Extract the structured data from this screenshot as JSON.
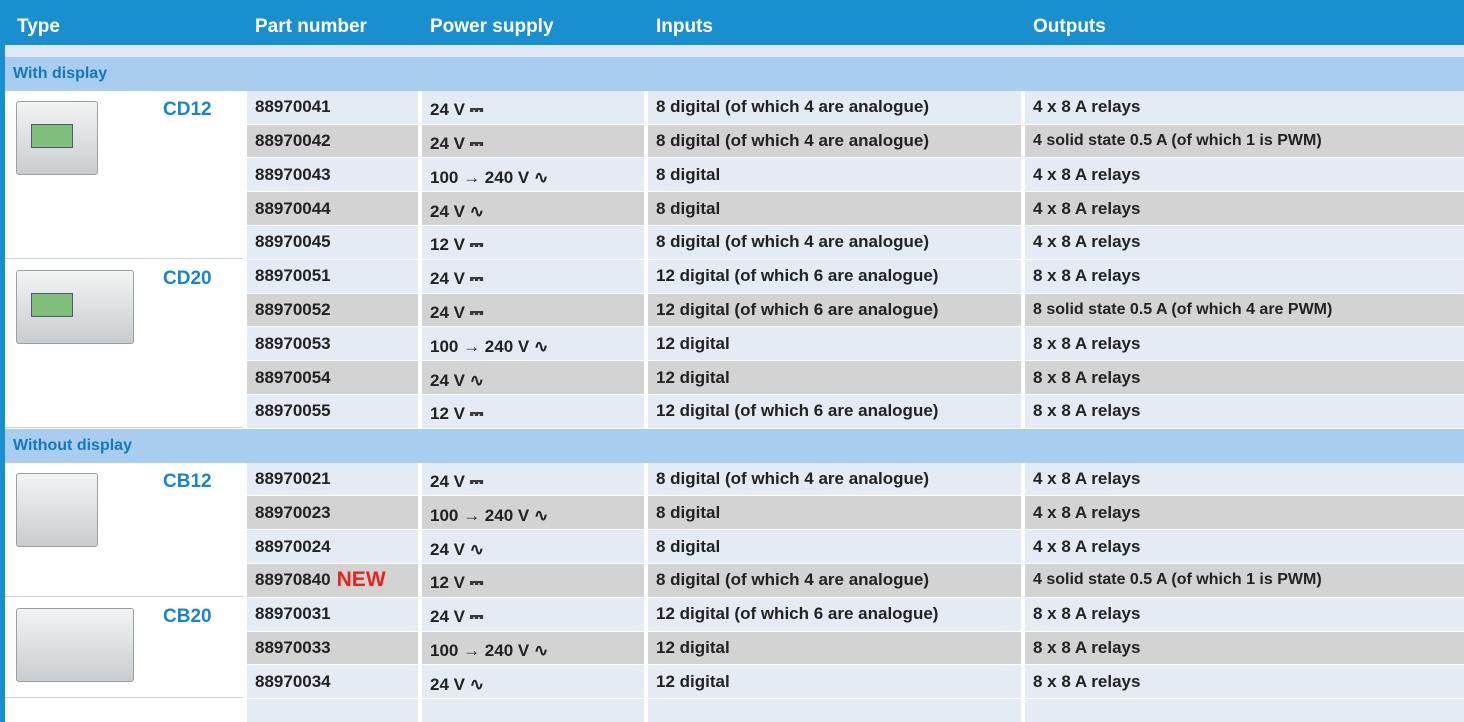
{
  "header": [
    "Type",
    "Part number",
    "Power supply",
    "Inputs",
    "Outputs"
  ],
  "sections": [
    {
      "title": "With display",
      "groups": [
        {
          "type": "CD12",
          "rows": [
            {
              "part": "88970041",
              "power": "24 V ⎓",
              "inputs": "8 digital (of which 4 are analogue)",
              "outputs": "4 x 8 A relays"
            },
            {
              "part": "88970042",
              "power": "24 V ⎓",
              "inputs": "8 digital (of which 4 are analogue)",
              "outputs": "4 solid state 0.5 A (of which 1 is PWM)"
            },
            {
              "part": "88970043",
              "power": "100 → 240 V ∿",
              "inputs": "8 digital",
              "outputs": "4 x 8 A relays"
            },
            {
              "part": "88970044",
              "power": "24 V ∿",
              "inputs": "8 digital",
              "outputs": "4 x 8 A relays"
            },
            {
              "part": "88970045",
              "power": "12 V ⎓",
              "inputs": "8 digital (of which 4 are analogue)",
              "outputs": "4 x 8 A relays"
            }
          ]
        },
        {
          "type": "CD20",
          "rows": [
            {
              "part": "88970051",
              "power": "24 V ⎓",
              "inputs": "12 digital (of which 6 are analogue)",
              "outputs": "8 x 8 A relays"
            },
            {
              "part": "88970052",
              "power": "24 V ⎓",
              "inputs": "12 digital (of which 6 are analogue)",
              "outputs": "8 solid state 0.5 A (of which 4 are PWM)"
            },
            {
              "part": "88970053",
              "power": "100 → 240 V ∿",
              "inputs": "12 digital",
              "outputs": "8 x 8 A relays"
            },
            {
              "part": "88970054",
              "power": "24 V ∿",
              "inputs": "12 digital",
              "outputs": "8 x 8 A relays"
            },
            {
              "part": "88970055",
              "power": "12 V ⎓",
              "inputs": "12 digital (of which 6 are analogue)",
              "outputs": "8 x 8 A relays"
            }
          ]
        }
      ]
    },
    {
      "title": "Without display",
      "groups": [
        {
          "type": "CB12",
          "rows": [
            {
              "part": "88970021",
              "power": "24 V ⎓",
              "inputs": "8 digital (of which 4 are analogue)",
              "outputs": "4 x 8 A relays"
            },
            {
              "part": "88970023",
              "power": "100 → 240 V ∿",
              "inputs": "8 digital",
              "outputs": "4 x 8 A relays"
            },
            {
              "part": "88970024",
              "power": "24 V ∿",
              "inputs": "8 digital",
              "outputs": "4 x 8 A relays"
            },
            {
              "part": "88970840",
              "badge": "NEW",
              "power": "12 V ⎓",
              "inputs": "8 digital (of which 4 are analogue)",
              "outputs": "4 solid state 0.5 A (of which 1 is PWM)"
            }
          ]
        },
        {
          "type": "CB20",
          "rows": [
            {
              "part": "88970031",
              "power": "24 V ⎓",
              "inputs": "12 digital (of which 6 are analogue)",
              "outputs": "8 x 8 A relays"
            },
            {
              "part": "88970033",
              "power": "100 → 240 V ∿",
              "inputs": "12 digital",
              "outputs": "8 x 8 A relays"
            },
            {
              "part": "88970034",
              "power": "24 V ∿",
              "inputs": "12 digital",
              "outputs": "8 x 8 A relays"
            }
          ]
        }
      ]
    }
  ]
}
